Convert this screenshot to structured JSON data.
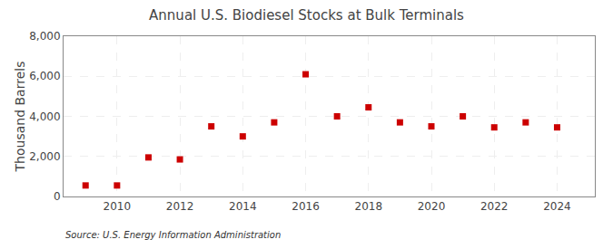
{
  "chart_data": {
    "type": "scatter",
    "title": "Annual U.S. Biodiesel Stocks at Bulk Terminals",
    "y_label": "Thousand Barrels",
    "annotations": [
      "Source: U.S. Energy Information Administration"
    ],
    "x": [
      2009,
      2010,
      2011,
      2012,
      2013,
      2014,
      2015,
      2016,
      2017,
      2018,
      2019,
      2020,
      2021,
      2022,
      2023,
      2024
    ],
    "values": [
      550,
      550,
      1950,
      1850,
      3500,
      3000,
      3700,
      6100,
      4000,
      4450,
      3700,
      3500,
      4000,
      3450,
      3700,
      3450
    ],
    "color": "#cc0000",
    "marker": "square",
    "xlim": [
      2008.3,
      2025.2
    ],
    "xticks": [
      2010,
      2012,
      2014,
      2016,
      2018,
      2020,
      2022,
      2024
    ],
    "ylim": [
      0,
      8000
    ],
    "yticks": [
      0,
      {
        "value": 2000,
        "label": "2,000"
      },
      {
        "value": 4000,
        "label": "4,000"
      },
      {
        "value": 6000,
        "label": "6,000"
      },
      {
        "value": 8000,
        "label": "8,000"
      }
    ],
    "grid": true
  }
}
